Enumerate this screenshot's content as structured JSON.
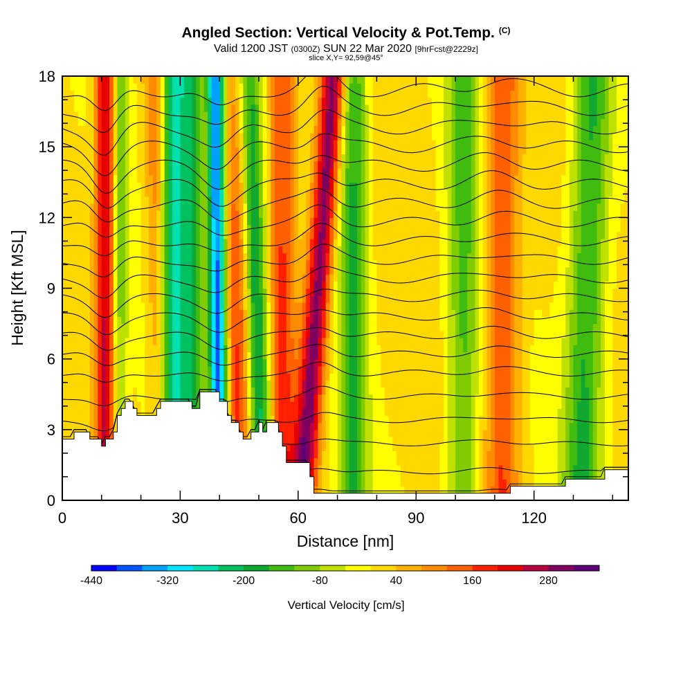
{
  "header": {
    "title": "Angled Section: Vertical Velocity & Pot.Temp.",
    "copyright": "(C)",
    "valid_prefix": "Valid 1200 JST",
    "utc": "(0300Z)",
    "valid_date": "SUN 22 Mar 2020",
    "forecast": "[9hrFcst@2229z]",
    "slice": "slice X,Y= 92,59@45°"
  },
  "chart_data": {
    "type": "heatmap",
    "xlabel": "Distance [nm]",
    "ylabel": "Height [Kft MSL]",
    "xlim": [
      0,
      144
    ],
    "ylim": [
      0,
      18
    ],
    "x_ticks": [
      0,
      30,
      60,
      90,
      120
    ],
    "y_ticks": [
      0,
      3,
      6,
      9,
      12,
      15,
      18
    ],
    "colorbar": {
      "title": "Vertical Velocity [cm/s]",
      "labels": [
        "-440",
        "-320",
        "-200",
        "-80",
        "40",
        "160",
        "280"
      ],
      "label_values": [
        -440,
        -320,
        -200,
        -80,
        40,
        160,
        280
      ],
      "min": -440,
      "step": 40,
      "colors": [
        "#0000ff",
        "#0055ff",
        "#00a0ff",
        "#00e5ff",
        "#00e0b0",
        "#00c060",
        "#10a830",
        "#40bb10",
        "#80cc00",
        "#c0e000",
        "#ffff00",
        "#ffd800",
        "#ffb000",
        "#ff8c00",
        "#ff6000",
        "#ff2000",
        "#e80000",
        "#b80040",
        "#800060",
        "#5a007a"
      ]
    },
    "terrain_kft": [
      [
        0,
        2.6
      ],
      [
        3,
        2.6
      ],
      [
        3,
        2.9
      ],
      [
        7,
        2.9
      ],
      [
        7,
        2.6
      ],
      [
        10,
        2.6
      ],
      [
        10,
        2.3
      ],
      [
        11,
        2.3
      ],
      [
        11,
        2.6
      ],
      [
        13,
        2.6
      ],
      [
        13,
        2.9
      ],
      [
        14,
        2.9
      ],
      [
        14,
        3.6
      ],
      [
        15,
        3.6
      ],
      [
        15,
        3.9
      ],
      [
        16,
        3.9
      ],
      [
        16,
        4.2
      ],
      [
        18,
        4.2
      ],
      [
        18,
        3.9
      ],
      [
        19,
        3.9
      ],
      [
        19,
        3.6
      ],
      [
        24,
        3.6
      ],
      [
        24,
        3.9
      ],
      [
        25,
        3.9
      ],
      [
        25,
        4.2
      ],
      [
        33,
        4.2
      ],
      [
        33,
        3.9
      ],
      [
        35,
        3.9
      ],
      [
        35,
        4.6
      ],
      [
        40,
        4.6
      ],
      [
        40,
        4.2
      ],
      [
        42,
        4.2
      ],
      [
        42,
        3.6
      ],
      [
        43,
        3.6
      ],
      [
        43,
        3.3
      ],
      [
        45,
        3.3
      ],
      [
        45,
        2.9
      ],
      [
        46,
        2.9
      ],
      [
        46,
        2.6
      ],
      [
        48,
        2.6
      ],
      [
        48,
        2.9
      ],
      [
        50,
        2.9
      ],
      [
        50,
        3.3
      ],
      [
        51,
        3.3
      ],
      [
        51,
        2.9
      ],
      [
        52,
        2.9
      ],
      [
        52,
        3.3
      ],
      [
        55,
        3.3
      ],
      [
        55,
        2.9
      ],
      [
        56,
        2.9
      ],
      [
        56,
        2.3
      ],
      [
        57,
        2.3
      ],
      [
        57,
        1.6
      ],
      [
        63,
        1.6
      ],
      [
        63,
        1.0
      ],
      [
        64,
        1.0
      ],
      [
        64,
        0.3
      ],
      [
        114,
        0.3
      ],
      [
        114,
        0.6
      ],
      [
        128,
        0.6
      ],
      [
        128,
        0.9
      ],
      [
        138,
        0.9
      ],
      [
        138,
        1.3
      ],
      [
        144,
        1.3
      ]
    ],
    "bands": [
      {
        "center_bottom": 11,
        "center_top": 11,
        "width": 1.8,
        "value": 240
      },
      {
        "center_bottom": 25,
        "center_top": 24,
        "width": 2.0,
        "value": 200
      },
      {
        "center_bottom": 27,
        "center_top": 28,
        "width": 3.0,
        "value": -280
      },
      {
        "center_bottom": 40,
        "center_top": 39,
        "width": 1.6,
        "value": -400
      },
      {
        "center_bottom": 51,
        "center_top": 47,
        "width": 2.2,
        "value": -260
      },
      {
        "center_bottom": 61,
        "center_top": 69,
        "width": 2.2,
        "value": 300
      },
      {
        "center_bottom": 56,
        "center_top": 56,
        "width": 2.5,
        "value": 160
      },
      {
        "center_bottom": 45,
        "center_top": 45,
        "width": 2.5,
        "value": 160
      },
      {
        "center_bottom": 74,
        "center_top": 74,
        "width": 2.5,
        "value": -180
      },
      {
        "center_bottom": 102,
        "center_top": 102,
        "width": 3.0,
        "value": -140
      },
      {
        "center_bottom": 112,
        "center_top": 112,
        "width": 3.0,
        "value": 150
      },
      {
        "center_bottom": 132,
        "center_top": 135,
        "width": 3.5,
        "value": -180
      },
      {
        "center_bottom": 14,
        "center_top": 15,
        "width": 1.5,
        "value": -120
      },
      {
        "center_bottom": 33,
        "center_top": 33,
        "width": 2.0,
        "value": -160
      }
    ],
    "isentrope_levels_kft": [
      0.3,
      1.2,
      2.4,
      3.4,
      4.4,
      5.4,
      6.2,
      7.0,
      7.8,
      8.6,
      9.4,
      10.2,
      11.0,
      11.8,
      12.6,
      13.4,
      14.2,
      15.0,
      15.8,
      16.6,
      17.4
    ]
  }
}
